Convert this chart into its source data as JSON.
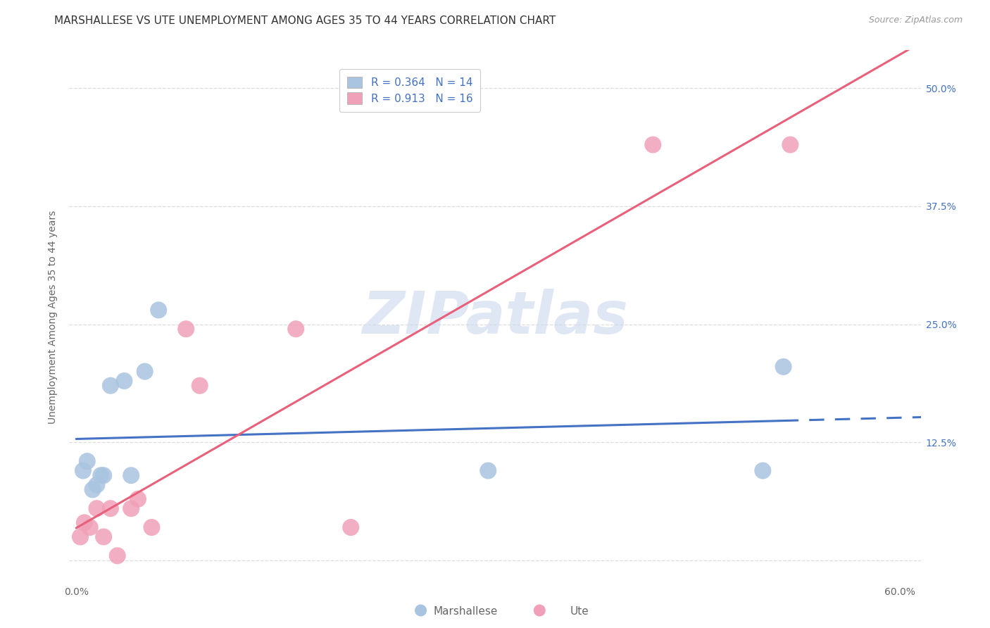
{
  "title": "MARSHALLESE VS UTE UNEMPLOYMENT AMONG AGES 35 TO 44 YEARS CORRELATION CHART",
  "source": "Source: ZipAtlas.com",
  "ylabel": "Unemployment Among Ages 35 to 44 years",
  "xlim": [
    -0.005,
    0.615
  ],
  "ylim": [
    -0.025,
    0.54
  ],
  "xticks": [
    0.0,
    0.6
  ],
  "xticklabels": [
    "0.0%",
    "60.0%"
  ],
  "yticks": [
    0.0,
    0.125,
    0.25,
    0.375,
    0.5
  ],
  "yticklabels_right": [
    "",
    "12.5%",
    "25.0%",
    "37.5%",
    "50.0%"
  ],
  "marshallese_r": 0.364,
  "marshallese_n": 14,
  "ute_r": 0.913,
  "ute_n": 16,
  "marshallese_color": "#a8c4e0",
  "ute_color": "#f0a0b8",
  "marshallese_line_color": "#4472c4",
  "ute_line_color": "#e8607a",
  "legend_labels": [
    "Marshallese",
    "Ute"
  ],
  "watermark_text": "ZIPatlas",
  "marshallese_x": [
    0.005,
    0.008,
    0.012,
    0.015,
    0.018,
    0.02,
    0.025,
    0.035,
    0.04,
    0.05,
    0.06,
    0.3,
    0.5,
    0.515
  ],
  "marshallese_y": [
    0.095,
    0.105,
    0.075,
    0.08,
    0.09,
    0.09,
    0.185,
    0.19,
    0.09,
    0.2,
    0.265,
    0.095,
    0.095,
    0.205
  ],
  "ute_x": [
    0.003,
    0.006,
    0.01,
    0.015,
    0.02,
    0.025,
    0.03,
    0.04,
    0.045,
    0.055,
    0.08,
    0.09,
    0.16,
    0.2,
    0.42,
    0.52
  ],
  "ute_y": [
    0.025,
    0.04,
    0.035,
    0.055,
    0.025,
    0.055,
    0.005,
    0.055,
    0.065,
    0.035,
    0.245,
    0.185,
    0.245,
    0.035,
    0.44,
    0.44
  ],
  "grid_color": "#dddddd",
  "bg_color": "#ffffff",
  "title_color": "#333333",
  "tick_color": "#4472c4",
  "axis_label_color": "#666666",
  "title_fontsize": 11,
  "label_fontsize": 10,
  "tick_fontsize": 10,
  "legend_fontsize": 11,
  "source_fontsize": 9
}
